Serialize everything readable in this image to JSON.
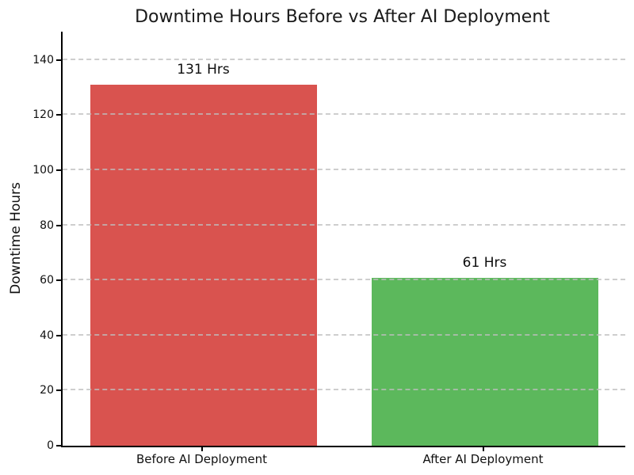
{
  "chart_data": {
    "type": "bar",
    "title": "Downtime Hours Before vs After AI Deployment",
    "ylabel": "Downtime Hours",
    "xlabel": "",
    "categories": [
      "Before AI Deployment",
      "After AI Deployment"
    ],
    "values": [
      131,
      61
    ],
    "value_labels": [
      "131 Hrs",
      "61 Hrs"
    ],
    "bar_colors": [
      "#d9534f",
      "#5cb85c"
    ],
    "yticks": [
      0,
      20,
      40,
      60,
      80,
      100,
      120,
      140
    ],
    "ylim": [
      0,
      150
    ],
    "grid": "horizontal-dashed",
    "legend_position": "none"
  },
  "colors": {
    "background": "#ffffff",
    "axis": "#000000",
    "grid": "#bebebe",
    "title_text": "#1a1a1a",
    "bar_before": "#d9534f",
    "bar_after": "#5cb85c"
  }
}
